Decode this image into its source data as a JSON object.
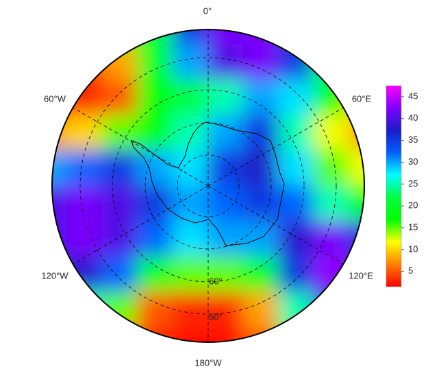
{
  "chart_data": {
    "type": "polar-field",
    "longitude_labels": [
      "0°",
      "60°E",
      "120°E",
      "180°W",
      "120°W",
      "60°W"
    ],
    "latitude_labels": [
      "60°",
      "50°"
    ],
    "field": [
      [
        3,
        3,
        15,
        22,
        35,
        42,
        42,
        35,
        22,
        15
      ],
      [
        3,
        3,
        8,
        20,
        30,
        40,
        42,
        35,
        22,
        15
      ],
      [
        2,
        3,
        5,
        18,
        22,
        25,
        30,
        28,
        18,
        10
      ],
      [
        8,
        10,
        15,
        18,
        25,
        30,
        35,
        25,
        12,
        8
      ],
      [
        30,
        32,
        35,
        30,
        28,
        35,
        37,
        28,
        15,
        12
      ],
      [
        40,
        42,
        40,
        35,
        30,
        32,
        35,
        32,
        25,
        18
      ],
      [
        40,
        42,
        40,
        32,
        28,
        30,
        30,
        38,
        42,
        35
      ],
      [
        35,
        38,
        32,
        20,
        15,
        15,
        20,
        35,
        43,
        38
      ],
      [
        25,
        25,
        15,
        5,
        3,
        3,
        8,
        25,
        35,
        30
      ],
      [
        15,
        12,
        8,
        3,
        2,
        2,
        5,
        15,
        25,
        20
      ]
    ],
    "colormap": [
      "#ff0000",
      "#ff8000",
      "#ffff00",
      "#00ff00",
      "#00ff40",
      "#00ffff",
      "#0060ff",
      "#1c1cc8",
      "#8000ff",
      "#ff00ff"
    ],
    "clim": [
      1.5,
      47.5
    ],
    "cticks": [
      5,
      10,
      15,
      20,
      25,
      30,
      35,
      40,
      45
    ]
  }
}
